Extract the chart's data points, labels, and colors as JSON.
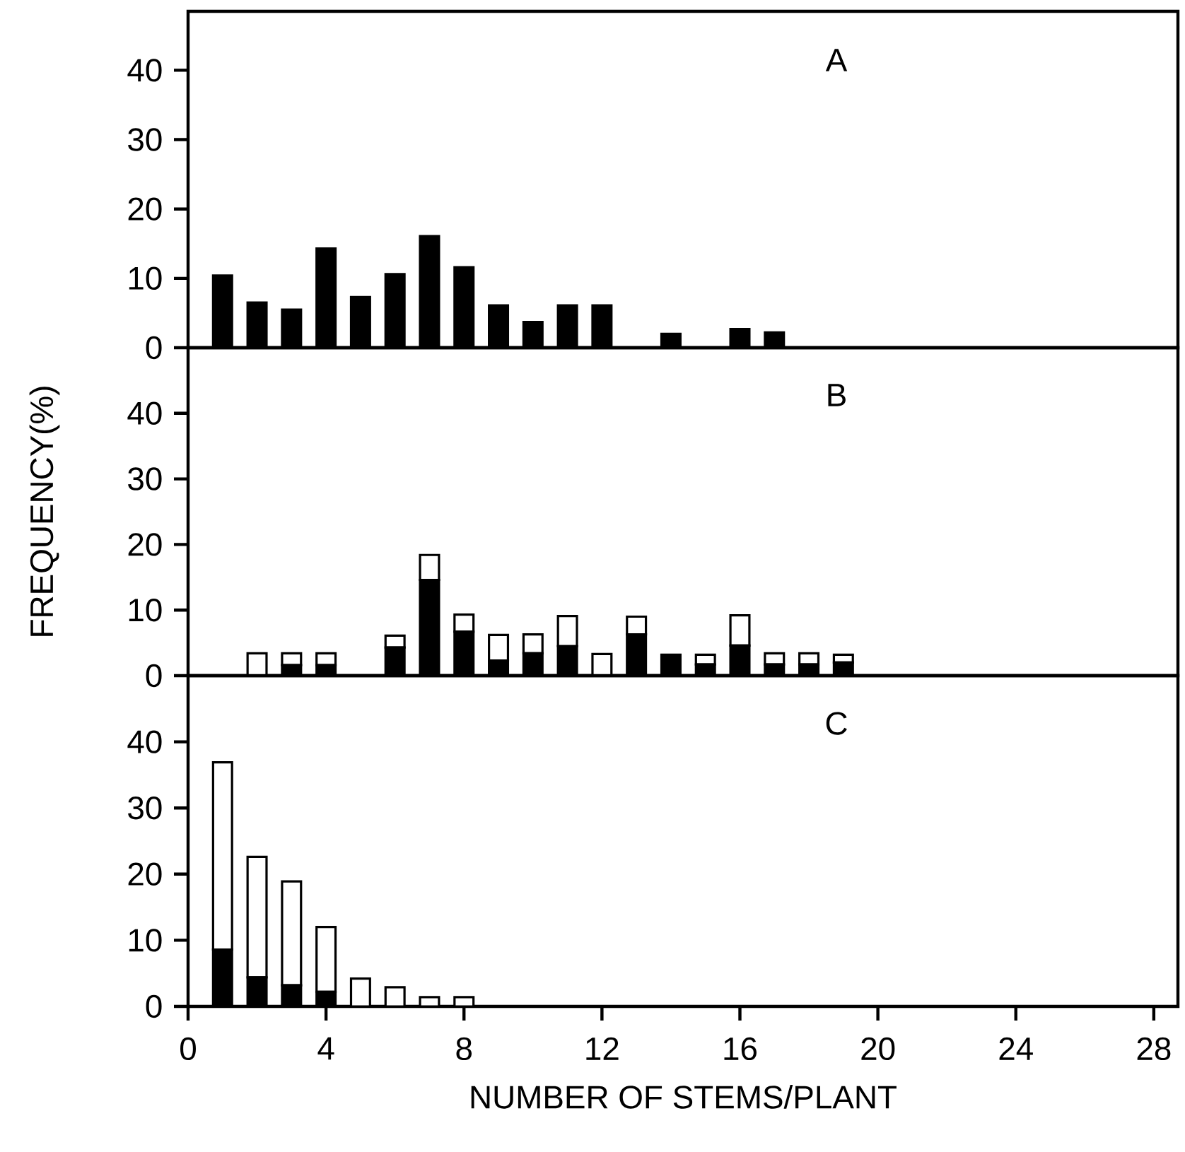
{
  "chart_data": [
    {
      "type": "bar",
      "title": "A",
      "x": [
        1,
        2,
        3,
        4,
        5,
        6,
        7,
        8,
        9,
        10,
        11,
        12,
        14,
        16,
        17
      ],
      "xlim": [
        0,
        28.7
      ],
      "ylim": [
        0,
        48.5
      ],
      "yticks": [
        0,
        10,
        20,
        30,
        40
      ],
      "tick_labels": "y",
      "series": [
        {
          "color": "#000000",
          "values": [
            10.4,
            6.5,
            5.5,
            14.3,
            7.3,
            10.6,
            16.1,
            11.6,
            6.1,
            3.7,
            6.1,
            6.1,
            2.0,
            2.7,
            2.2
          ]
        }
      ]
    },
    {
      "type": "bar",
      "title": "B",
      "ylabel": "FREQUENCY(%)",
      "stacked": true,
      "x": [
        2,
        3,
        4,
        6,
        7,
        8,
        9,
        10,
        11,
        12,
        13,
        14,
        15,
        16,
        17,
        18,
        19
      ],
      "xlim": [
        0,
        28.7
      ],
      "ylim": [
        0,
        50
      ],
      "yticks": [
        0,
        10,
        20,
        30,
        40
      ],
      "tick_labels": "y",
      "series": [
        {
          "color": "#000000",
          "values": [
            0,
            1.6,
            1.6,
            4.3,
            14.6,
            6.7,
            2.3,
            3.4,
            4.5,
            0,
            6.3,
            3.2,
            1.7,
            4.6,
            1.7,
            1.7,
            2.0
          ]
        },
        {
          "color": "#ffffff",
          "values": [
            3.4,
            1.8,
            1.8,
            1.8,
            3.8,
            2.6,
            3.9,
            2.9,
            4.6,
            3.3,
            2.7,
            0,
            1.5,
            4.6,
            1.7,
            1.7,
            1.2
          ]
        }
      ]
    },
    {
      "type": "bar",
      "title": "C",
      "xlabel": "NUMBER OF STEMS/PLANT",
      "stacked": true,
      "x": [
        1,
        2,
        3,
        4,
        5,
        6,
        7,
        8
      ],
      "xlim": [
        0,
        28.7
      ],
      "ylim": [
        0,
        50
      ],
      "yticks": [
        0,
        10,
        20,
        30,
        40
      ],
      "xticks": [
        0,
        4,
        8,
        12,
        16,
        20,
        24,
        28
      ],
      "series": [
        {
          "color": "#000000",
          "values": [
            8.6,
            4.4,
            3.2,
            2.2,
            0,
            0,
            0,
            0
          ]
        },
        {
          "color": "#ffffff",
          "values": [
            28.3,
            18.2,
            15.7,
            9.8,
            4.2,
            2.9,
            1.4,
            1.4
          ]
        }
      ]
    }
  ]
}
